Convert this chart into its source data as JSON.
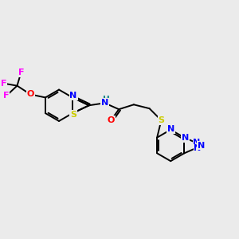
{
  "bg_color": "#ebebeb",
  "bond_color": "#000000",
  "atom_colors": {
    "S": "#cccc00",
    "O": "#ff0000",
    "N": "#0000ff",
    "F": "#ff00ff",
    "H": "#008080",
    "C": "#000000"
  },
  "figsize": [
    3.0,
    3.0
  ],
  "dpi": 100
}
